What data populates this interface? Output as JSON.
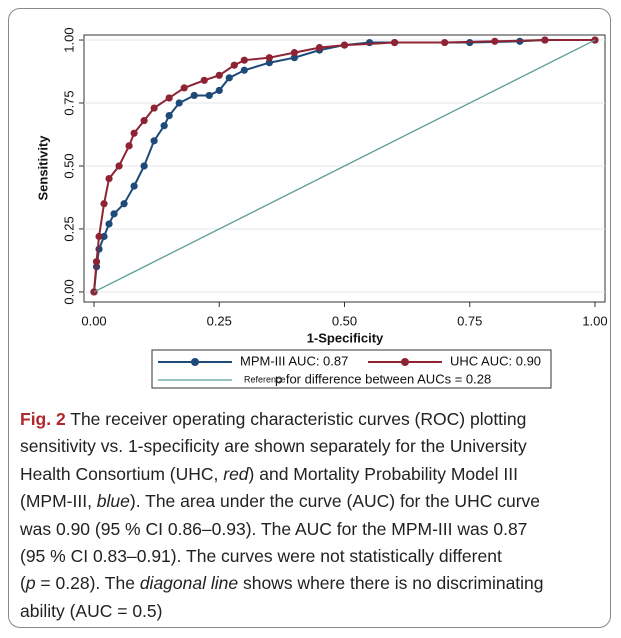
{
  "chart_data": {
    "type": "line",
    "xlabel": "1-Specificity",
    "ylabel": "Sensitivity",
    "xlim": [
      -0.02,
      1.02
    ],
    "ylim": [
      -0.04,
      1.02
    ],
    "xticks": [
      {
        "value": 0,
        "label": "0.00"
      },
      {
        "value": 0.25,
        "label": "0.25"
      },
      {
        "value": 0.5,
        "label": "0.50"
      },
      {
        "value": 0.75,
        "label": "0.75"
      },
      {
        "value": 1,
        "label": "1.00"
      }
    ],
    "yticks": [
      {
        "value": 0,
        "label": "0.00"
      },
      {
        "value": 0.25,
        "label": "0.25"
      },
      {
        "value": 0.5,
        "label": "0.50"
      },
      {
        "value": 0.75,
        "label": "0.75"
      },
      {
        "value": 1,
        "label": "1.00"
      }
    ],
    "grid": true,
    "series": [
      {
        "name": "MPM-III AUC: 0.87",
        "color": "#1d4a78",
        "markers": true,
        "x": [
          0,
          0.005,
          0.01,
          0.02,
          0.03,
          0.04,
          0.06,
          0.08,
          0.1,
          0.12,
          0.14,
          0.15,
          0.17,
          0.2,
          0.23,
          0.25,
          0.27,
          0.3,
          0.35,
          0.4,
          0.45,
          0.5,
          0.55,
          0.6,
          0.75,
          0.85,
          0.9,
          1
        ],
        "values": [
          0,
          0.1,
          0.17,
          0.22,
          0.27,
          0.31,
          0.35,
          0.42,
          0.5,
          0.6,
          0.66,
          0.7,
          0.75,
          0.78,
          0.78,
          0.8,
          0.85,
          0.88,
          0.91,
          0.93,
          0.96,
          0.98,
          0.99,
          0.99,
          0.99,
          0.995,
          1,
          1
        ]
      },
      {
        "name": "UHC AUC: 0.90",
        "color": "#8e2333",
        "markers": true,
        "x": [
          0,
          0.005,
          0.01,
          0.02,
          0.03,
          0.05,
          0.07,
          0.08,
          0.1,
          0.12,
          0.15,
          0.18,
          0.22,
          0.25,
          0.28,
          0.3,
          0.35,
          0.4,
          0.45,
          0.5,
          0.6,
          0.7,
          0.8,
          0.9,
          1
        ],
        "values": [
          0,
          0.12,
          0.22,
          0.35,
          0.45,
          0.5,
          0.58,
          0.63,
          0.68,
          0.73,
          0.77,
          0.81,
          0.84,
          0.86,
          0.9,
          0.92,
          0.93,
          0.95,
          0.97,
          0.98,
          0.99,
          0.99,
          0.995,
          1,
          1
        ]
      },
      {
        "name": "Reference",
        "color": "#5a9e99",
        "markers": false,
        "x": [
          0,
          1
        ],
        "values": [
          0,
          1
        ]
      }
    ],
    "annotation": "p for difference between AUCs = 0.28"
  },
  "caption": [
    [
      {
        "text": "Fig. 2",
        "bold": true
      },
      " The receiver operating characteristic curves (ROC) plotting"
    ],
    [
      "sensitivity vs. 1-specificity are shown separately for the University"
    ],
    [
      "Health Consortium (UHC, ",
      {
        "text": "red",
        "italic": true
      },
      ") and Mortality Probability Model III"
    ],
    [
      "(MPM-III, ",
      {
        "text": "blue",
        "italic": true
      },
      "). The area under the curve (AUC) for the UHC curve"
    ],
    [
      "was 0.90 (95 % CI 0.86–0.93). The AUC for the MPM-III was 0.87"
    ],
    [
      "(95 % CI 0.83–0.91). The curves were not statistically different"
    ],
    [
      "(",
      {
        "text": "p",
        "italic": true
      },
      " = 0.28). The ",
      {
        "text": "diagonal line",
        "italic": true
      },
      " shows where there is no discriminating"
    ],
    [
      "ability (AUC = 0.5)"
    ]
  ]
}
